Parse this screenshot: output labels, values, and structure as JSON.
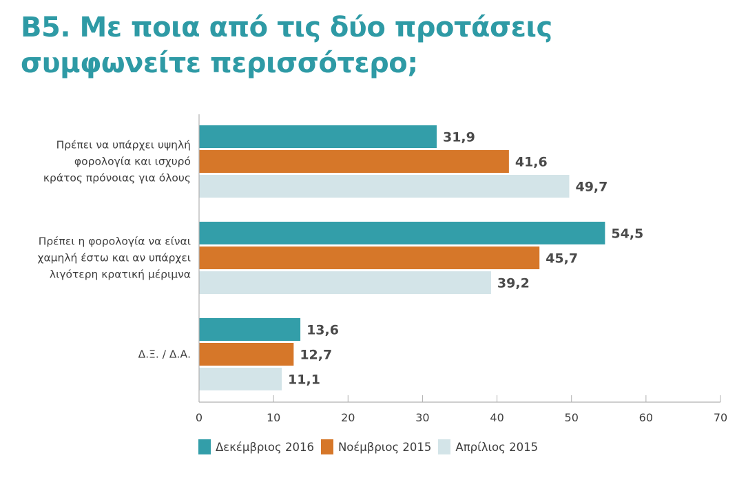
{
  "chart_data": {
    "type": "bar",
    "orientation": "horizontal",
    "title": "Β5. Με ποια από τις δύο προτάσεις συμφωνείτε περισσότερο;",
    "title_lines": [
      "Β5. Με ποια από τις δύο προτάσεις",
      "συμφωνείτε περισσότερο;"
    ],
    "categories": [
      [
        "Πρέπει να υπάρχει υψηλή",
        "φορολογία και ισχυρό",
        "κράτος πρόνοιας για όλους"
      ],
      [
        "Πρέπει η φορολογία να είναι",
        "χαμηλή έστω και αν υπάρχει",
        "λιγότερη κρατική μέριμνα"
      ],
      [
        "Δ.Ξ. / Δ.Α."
      ]
    ],
    "series": [
      {
        "name": "Δεκέμβριος 2016",
        "color": "#339ea9",
        "values": [
          31.9,
          54.5,
          13.6
        ],
        "labels": [
          "31,9",
          "54,5",
          "13,6"
        ]
      },
      {
        "name": "Νοέμβριος 2015",
        "color": "#d67729",
        "values": [
          41.6,
          45.7,
          12.7
        ],
        "labels": [
          "41,6",
          "45,7",
          "12,7"
        ]
      },
      {
        "name": "Απρίλιος 2015",
        "color": "#d3e4e8",
        "values": [
          49.7,
          39.2,
          11.1
        ],
        "labels": [
          "49,7",
          "39,2",
          "11,1"
        ]
      }
    ],
    "xlim": [
      0,
      70
    ],
    "xticks": [
      0,
      10,
      20,
      30,
      40,
      50,
      60,
      70
    ],
    "xlabel": "",
    "ylabel": "",
    "grid": false,
    "legend_position": "bottom-left",
    "colors": {
      "title": "#2e9aa5",
      "text": "#3d3d3d",
      "value_text": "#4a4a4a",
      "axis": "#b0b0b0"
    }
  }
}
